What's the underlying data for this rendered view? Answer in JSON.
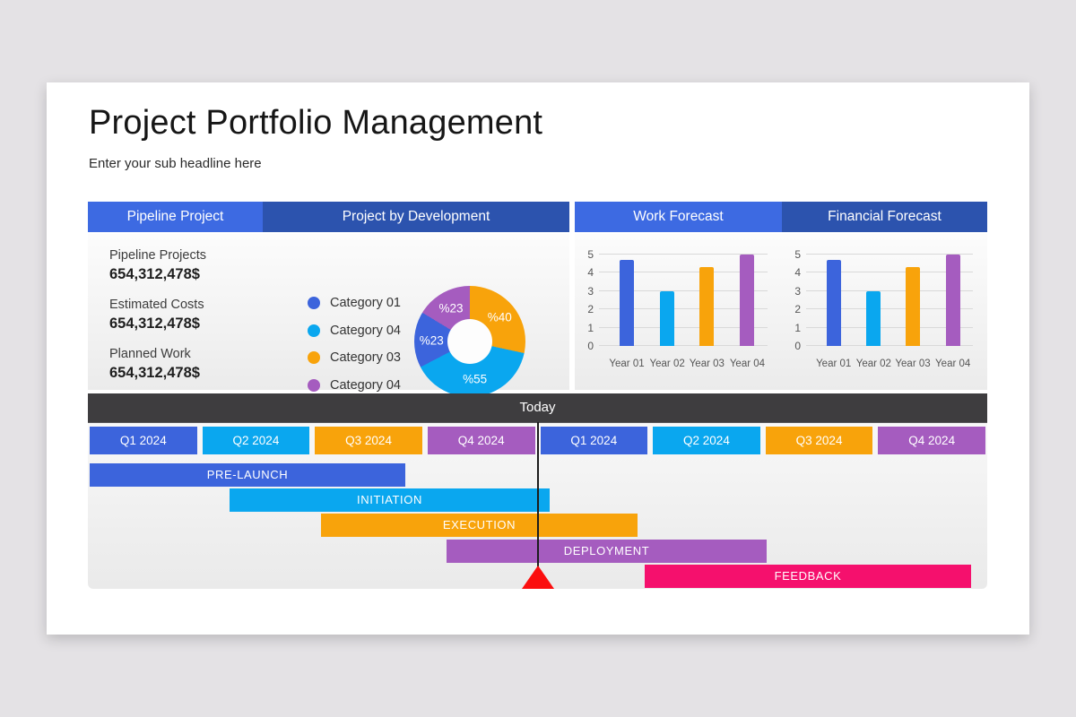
{
  "page": {
    "title": "Project Portfolio Management",
    "subtitle": "Enter your sub headline here",
    "background": "#e4e2e5",
    "card_background": "#ffffff"
  },
  "colors": {
    "header_blue": "#3d6ae2",
    "header_dark_blue": "#2c53ae",
    "blue": "#3c64dc",
    "cyan": "#0aa7ef",
    "orange": "#f8a30b",
    "purple": "#a55cbf",
    "pink": "#f5106d",
    "marker_red": "#fb0e0e",
    "today_bar": "#3e3d3f"
  },
  "pipeline": {
    "header": "Pipeline Project",
    "items": [
      {
        "label": "Pipeline Projects",
        "value": "654,312,478$"
      },
      {
        "label": "Estimated Costs",
        "value": "654,312,478$"
      },
      {
        "label": "Planned Work",
        "value": "654,312,478$"
      }
    ]
  },
  "development": {
    "header": "Project by Development",
    "legend": [
      {
        "label": "Category 01",
        "color": "#3c64dc"
      },
      {
        "label": "Category 04",
        "color": "#0aa7ef"
      },
      {
        "label": "Category 03",
        "color": "#f8a30b"
      },
      {
        "label": "Category 04",
        "color": "#a55cbf"
      }
    ]
  },
  "work": {
    "header": "Work Forecast"
  },
  "financial": {
    "header": "Financial Forecast"
  },
  "timeline": {
    "today_label": "Today",
    "quarters": [
      {
        "label": "Q1 2024",
        "color": "#3c64dc"
      },
      {
        "label": "Q2 2024",
        "color": "#0aa7ef"
      },
      {
        "label": "Q3 2024",
        "color": "#f8a30b"
      },
      {
        "label": "Q4 2024",
        "color": "#a55cbf"
      },
      {
        "label": "Q1 2024",
        "color": "#3c64dc"
      },
      {
        "label": "Q2 2024",
        "color": "#0aa7ef"
      },
      {
        "label": "Q3 2024",
        "color": "#f8a30b"
      },
      {
        "label": "Q4 2024",
        "color": "#a55cbf"
      }
    ],
    "phases": [
      {
        "label": "PRE-LAUNCH",
        "color": "#3c64dc"
      },
      {
        "label": "INITIATION",
        "color": "#0aa7ef"
      },
      {
        "label": "EXECUTION",
        "color": "#f8a30b"
      },
      {
        "label": "DEPLOYMENT",
        "color": "#a55cbf"
      },
      {
        "label": "FEEDBACK",
        "color": "#f5106d"
      }
    ]
  },
  "chart_data": [
    {
      "type": "pie",
      "title": "Project by Development",
      "donut": true,
      "labels": [
        "%40",
        "%55",
        "%23",
        "%23"
      ],
      "values": [
        40,
        55,
        23,
        23
      ],
      "colors": [
        "#f8a30b",
        "#0aa7ef",
        "#3c64dc",
        "#a55cbf"
      ],
      "legend": [
        "Category 01",
        "Category 04",
        "Category 03",
        "Category 04"
      ],
      "legend_position": "left",
      "start_angle_deg": 0,
      "direction": "clockwise"
    },
    {
      "type": "bar",
      "title": "Work Forecast",
      "categories": [
        "Year 01",
        "Year 02",
        "Year 03",
        "Year 04"
      ],
      "values": [
        4.7,
        3,
        4.3,
        5
      ],
      "colors": [
        "#3c64dc",
        "#0aa7ef",
        "#f8a30b",
        "#a55cbf"
      ],
      "xlabel": "",
      "ylabel": "",
      "ylim": [
        0,
        5
      ],
      "yticks": [
        0,
        1,
        2,
        3,
        4,
        5
      ],
      "grid": true
    },
    {
      "type": "bar",
      "title": "Financial Forecast",
      "categories": [
        "Year 01",
        "Year 02",
        "Year 03",
        "Year 04"
      ],
      "values": [
        4.7,
        3,
        4.3,
        5
      ],
      "colors": [
        "#3c64dc",
        "#0aa7ef",
        "#f8a30b",
        "#a55cbf"
      ],
      "xlabel": "",
      "ylabel": "",
      "ylim": [
        0,
        5
      ],
      "yticks": [
        0,
        1,
        2,
        3,
        4,
        5
      ],
      "grid": true
    }
  ]
}
